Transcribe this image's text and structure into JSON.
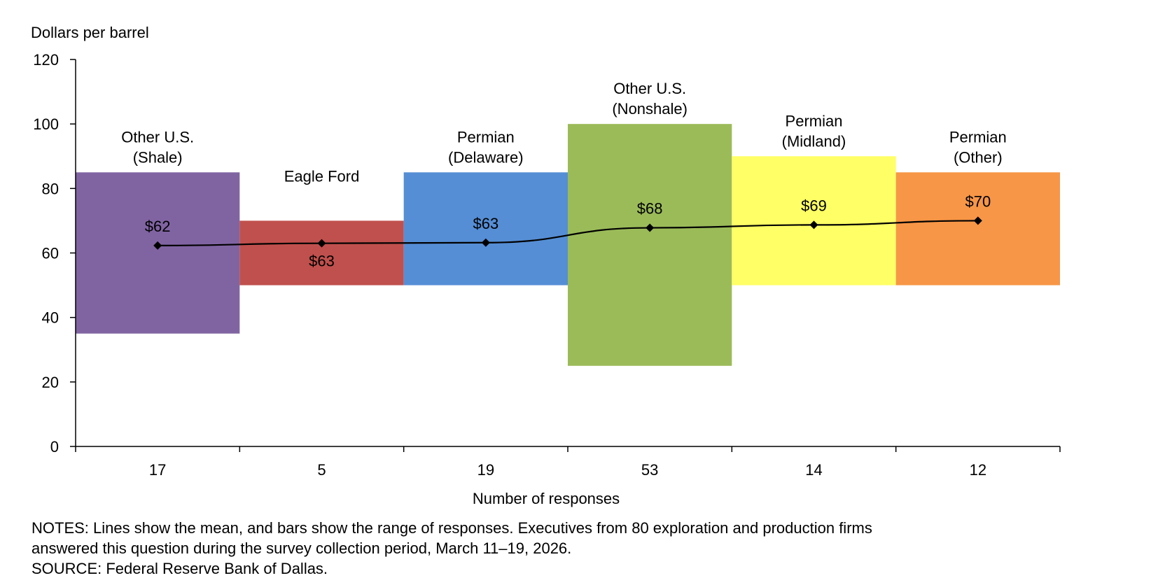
{
  "chart_data": {
    "type": "bar",
    "subtype": "range-bars-with-mean-line",
    "ylabel": "Dollars per barrel",
    "xlabel": "Number of responses",
    "ylim": [
      0,
      120
    ],
    "yticks": [
      0,
      20,
      40,
      60,
      80,
      100,
      120
    ],
    "grid": false,
    "categories": [
      {
        "name_lines": [
          "Other U.S.",
          "(Shale)"
        ],
        "responses": "17",
        "low": 35,
        "high": 85,
        "mean": 62.3,
        "mean_label": "$62",
        "color": "#8064a2",
        "label_pos": "above"
      },
      {
        "name_lines": [
          "Eagle Ford"
        ],
        "responses": "5",
        "low": 50,
        "high": 70,
        "mean": 63.0,
        "mean_label": "$63",
        "color": "#c0504d",
        "label_pos": "below"
      },
      {
        "name_lines": [
          "Permian",
          "(Delaware)"
        ],
        "responses": "19",
        "low": 50,
        "high": 85,
        "mean": 63.2,
        "mean_label": "$63",
        "color": "#558ed5",
        "label_pos": "above"
      },
      {
        "name_lines": [
          "Other U.S.",
          "(Nonshale)"
        ],
        "responses": "53",
        "low": 25,
        "high": 100,
        "mean": 67.8,
        "mean_label": "$68",
        "color": "#9bbb59",
        "label_pos": "above"
      },
      {
        "name_lines": [
          "Permian",
          "(Midland)"
        ],
        "responses": "14",
        "low": 50,
        "high": 90,
        "mean": 68.7,
        "mean_label": "$69",
        "color": "#ffff66",
        "label_pos": "above"
      },
      {
        "name_lines": [
          "Permian",
          "(Other)"
        ],
        "responses": "12",
        "low": 50,
        "high": 85,
        "mean": 70.0,
        "mean_label": "$70",
        "color": "#f79646",
        "label_pos": "above"
      }
    ],
    "line_color": "#000000"
  },
  "notes": {
    "line1": "NOTES:  Lines show the mean, and bars show the range of responses. Executives  from 80 exploration  and production firms",
    "line2": "answered this question  during the survey collection period, March 11–19, 2026.",
    "source": "SOURCE:  Federal Reserve Bank of Dallas."
  }
}
